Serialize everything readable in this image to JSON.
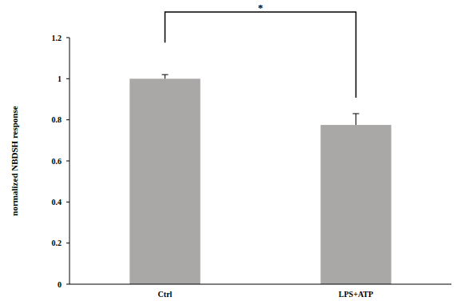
{
  "chart_data": {
    "type": "bar",
    "categories": [
      "Ctrl",
      "LPS+ATP"
    ],
    "values": [
      1.0,
      0.775
    ],
    "errors": [
      0.02,
      0.055
    ],
    "color": "#aaa7a7",
    "ylabel": "normalized NBDSH response",
    "ylim": [
      0,
      1.2
    ],
    "yticks": [
      0,
      0.2,
      0.4,
      0.6,
      0.8,
      1,
      1.2
    ],
    "grid": false,
    "annotations": [
      "*"
    ]
  }
}
